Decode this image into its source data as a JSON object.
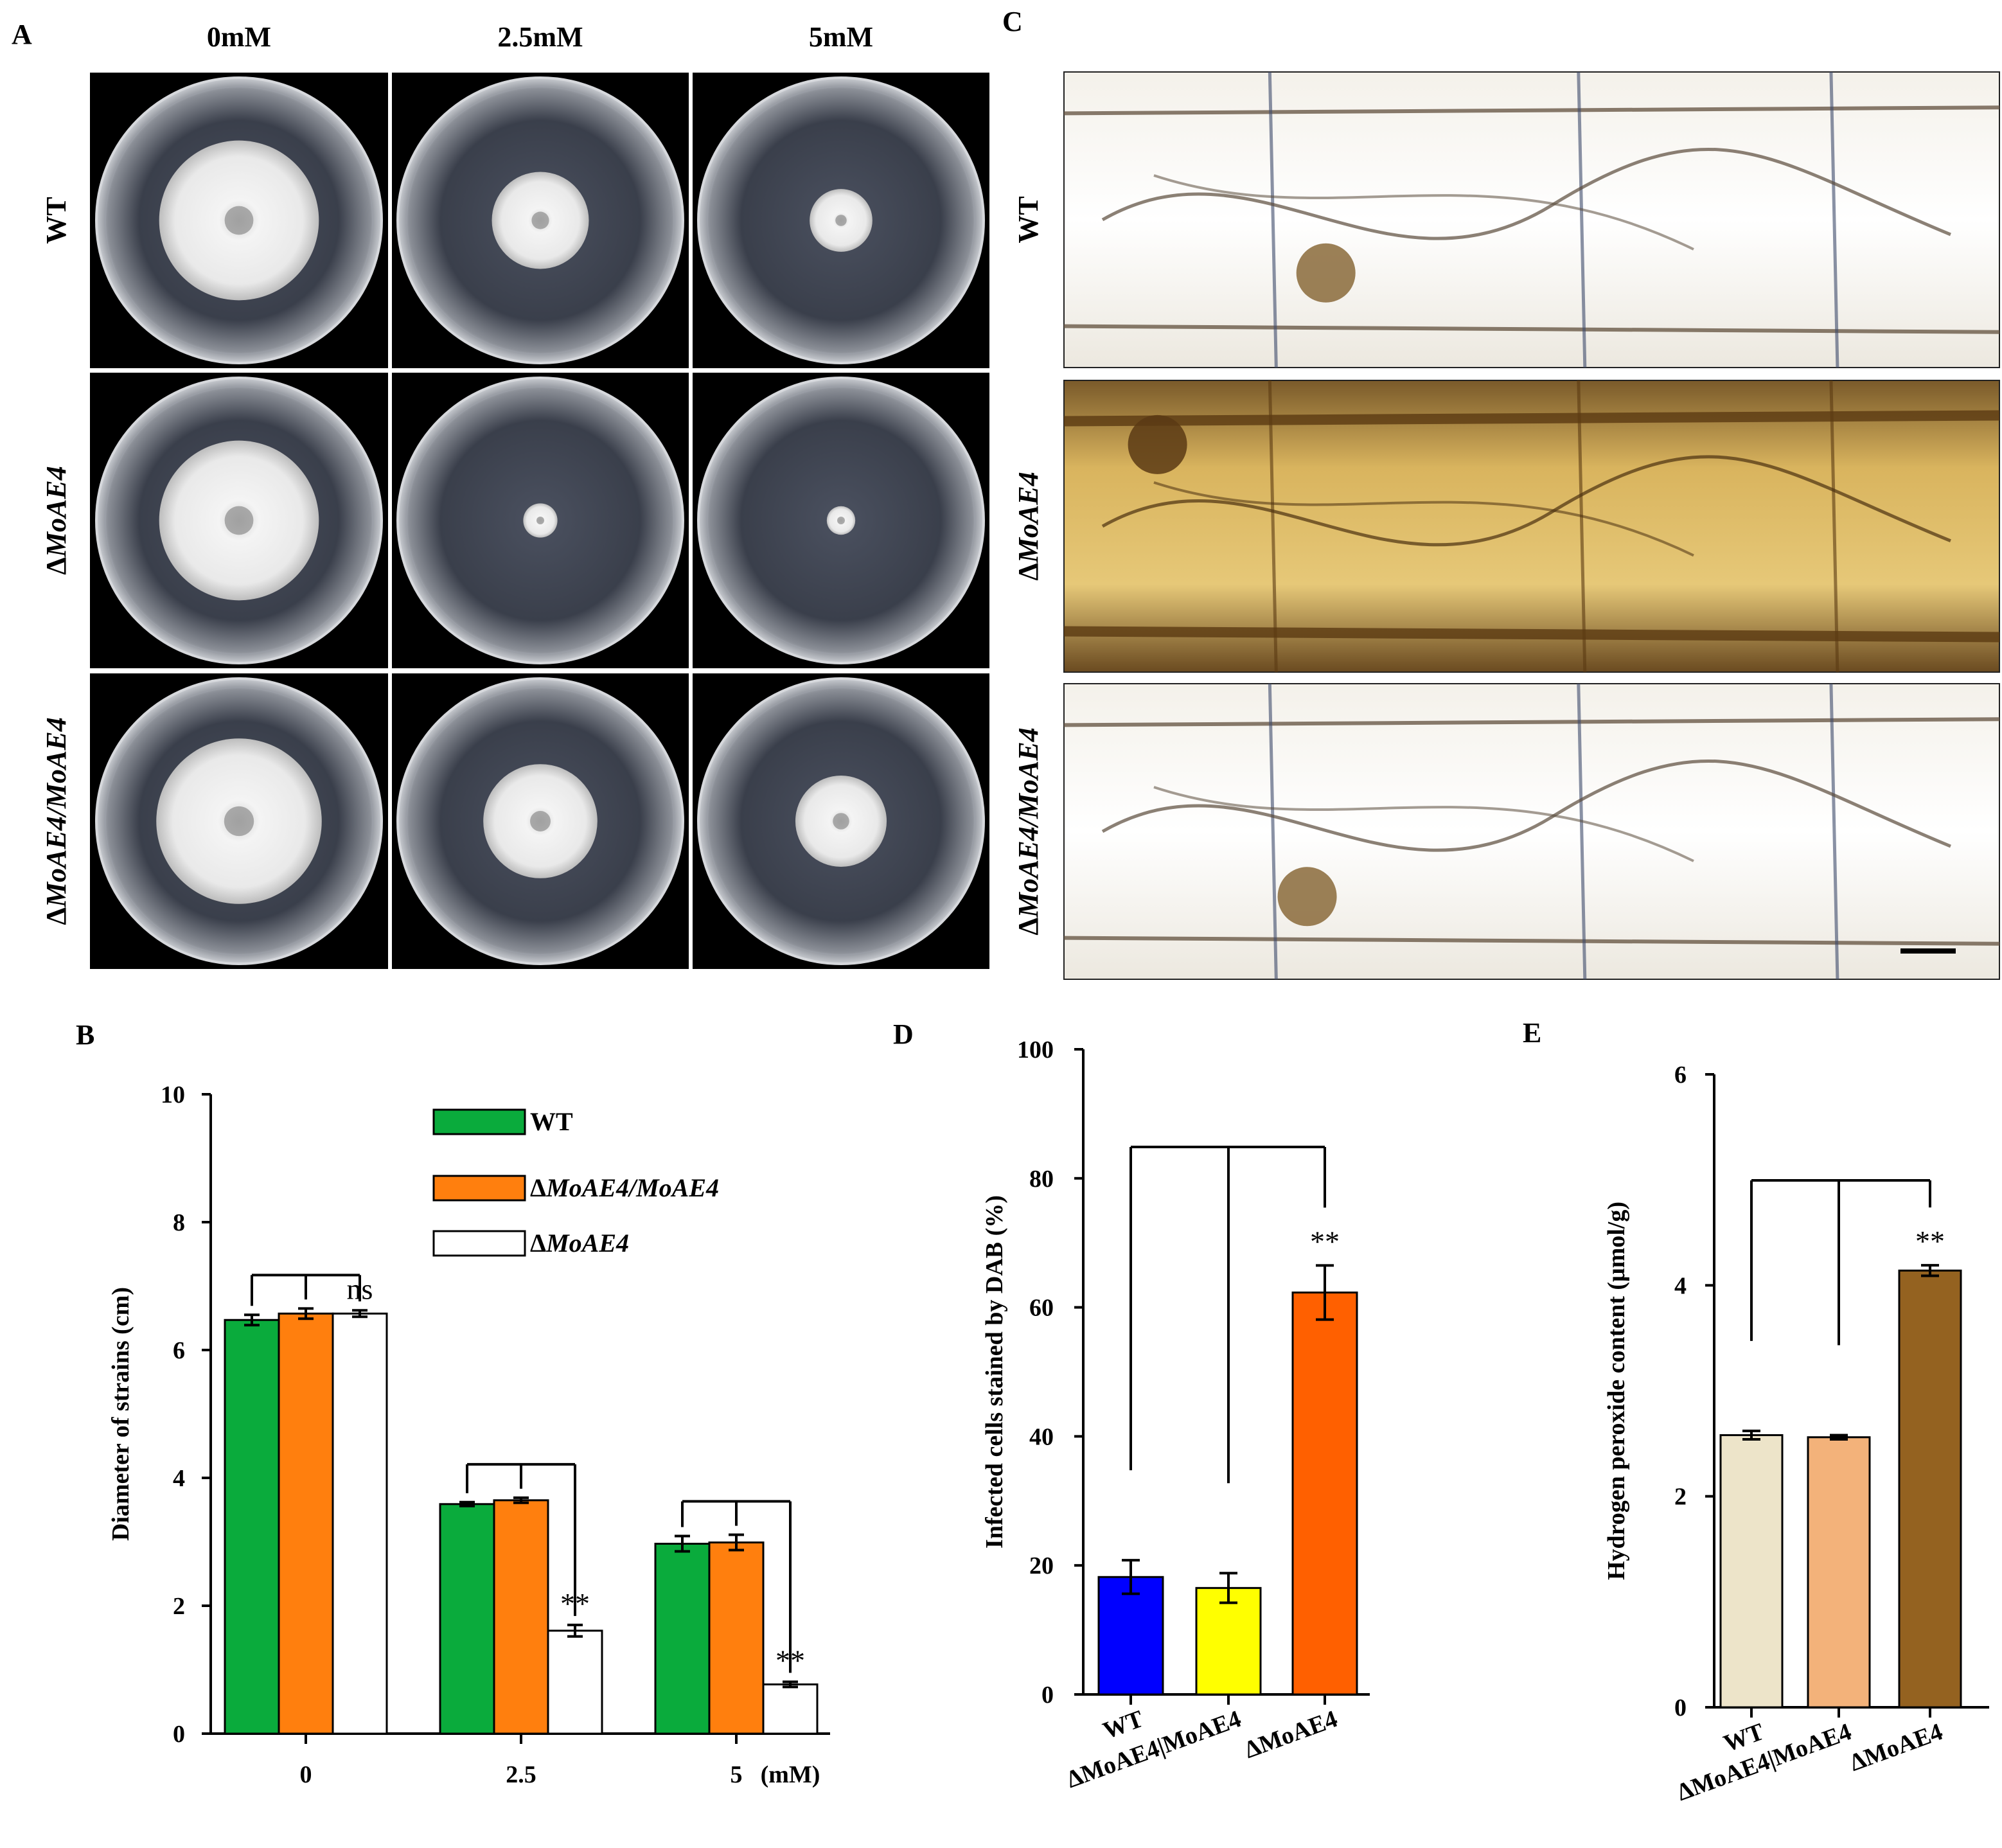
{
  "panels": {
    "A": {
      "letter": "A",
      "columns": [
        "0mM",
        "2.5mM",
        "5mM"
      ],
      "rows": [
        {
          "label": "WT",
          "italic": false,
          "colonies": [
            0.56,
            0.34,
            0.22
          ]
        },
        {
          "label": "ΔMoAE4",
          "italic": true,
          "colonies": [
            0.56,
            0.12,
            0.1
          ]
        },
        {
          "label": "ΔMoAE4/MoAE4",
          "italic": true,
          "colonies": [
            0.58,
            0.4,
            0.32
          ]
        }
      ]
    },
    "C": {
      "letter": "C",
      "rows": [
        {
          "label": "WT",
          "italic": false,
          "tone": "clear"
        },
        {
          "label": "ΔMoAE4",
          "italic": true,
          "tone": "stained"
        },
        {
          "label": "ΔMoAE4/MoAE4",
          "italic": true,
          "tone": "clear"
        }
      ]
    }
  },
  "chart_data": [
    {
      "panel": "B",
      "type": "bar",
      "letter": "B",
      "ylabel": "Diameter of strains (cm)",
      "ylim": [
        0,
        10
      ],
      "yticks": [
        0,
        2,
        4,
        6,
        8,
        10
      ],
      "categories": [
        "0",
        "2.5",
        "5"
      ],
      "xunit": "(mM)",
      "series": [
        {
          "name": "WT",
          "color": "#0aab3c",
          "values": [
            6.47,
            3.59,
            2.97
          ],
          "errors": [
            0.08,
            0.03,
            0.12
          ]
        },
        {
          "name": "ΔMoAE4/MoAE4",
          "color": "#ff7f0e",
          "values": [
            6.57,
            3.65,
            2.99
          ],
          "errors": [
            0.08,
            0.04,
            0.12
          ]
        },
        {
          "name": "ΔMoAE4",
          "color": "#ffffff",
          "values": [
            6.57,
            1.61,
            0.77
          ],
          "errors": [
            0.05,
            0.09,
            0.04
          ]
        }
      ],
      "significance": [
        "ns",
        "**",
        "**"
      ]
    },
    {
      "panel": "D",
      "type": "bar",
      "letter": "D",
      "ylabel": "Infected cells stained by DAB (%)",
      "ylim": [
        0,
        100
      ],
      "yticks": [
        0,
        20,
        40,
        60,
        80,
        100
      ],
      "categories": [
        "WT",
        "ΔMoAE4|MoAE4",
        "ΔMoAE4"
      ],
      "colors": [
        "#0000ff",
        "#ffff00",
        "#ff6000"
      ],
      "values": [
        18.2,
        16.5,
        62.3
      ],
      "errors": [
        2.6,
        2.3,
        4.2
      ],
      "significance": "**"
    },
    {
      "panel": "E",
      "type": "bar",
      "letter": "E",
      "ylabel": "Hydrogen peroxide content (μmol/g)",
      "ylim": [
        0,
        6
      ],
      "yticks": [
        0,
        2,
        4,
        6
      ],
      "categories": [
        "WT",
        "ΔMoAE4|MoAE4",
        "ΔMoAE4"
      ],
      "colors": [
        "#ede4c9",
        "#f3b27a",
        "#946220"
      ],
      "values": [
        2.58,
        2.56,
        4.14
      ],
      "errors": [
        0.04,
        0.02,
        0.05
      ],
      "significance": "**"
    }
  ]
}
